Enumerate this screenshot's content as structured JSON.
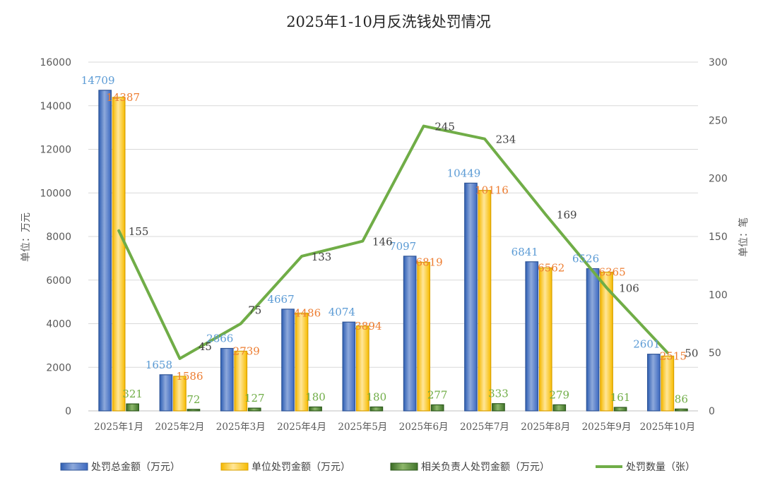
{
  "chart_data": {
    "type": "bar",
    "title": "2025年1-10月反洗钱处罚情况",
    "ylabel": "单位：万元",
    "y2label": "单位：笔",
    "ylim": [
      0,
      16000
    ],
    "y2lim": [
      0,
      300
    ],
    "yticks": [
      "0",
      "2000",
      "4000",
      "6000",
      "8000",
      "10000",
      "12000",
      "14000",
      "16000"
    ],
    "y2ticks": [
      "0",
      "50",
      "100",
      "150",
      "200",
      "250",
      "300"
    ],
    "categories": [
      "2025年1月",
      "2025年2月",
      "2025年3月",
      "2025年4月",
      "2025年5月",
      "2025年6月",
      "2025年7月",
      "2025年8月",
      "2025年9月",
      "2025年10月"
    ],
    "series": [
      {
        "name": "处罚总金额（万元）",
        "type": "bar",
        "axis": "left",
        "color": "#4472C4",
        "label_color": "#5B9BD5",
        "values": [
          14709,
          1658,
          2866,
          4667,
          4074,
          7097,
          10449,
          6841,
          6526,
          2601
        ],
        "labels": [
          "14709",
          "1658",
          "2866",
          "4667",
          "4074",
          "7097",
          "10449",
          "6841",
          "6526",
          "2601"
        ]
      },
      {
        "name": "单位处罚金额（万元）",
        "type": "bar",
        "axis": "left",
        "color": "#FFC000",
        "label_color": "#ED7D31",
        "values": [
          14387,
          1586,
          2739,
          4486,
          3894,
          6819,
          10116,
          6562,
          6365,
          2515
        ],
        "labels": [
          "14387",
          "1586",
          "2739",
          "4486",
          "3894",
          "6819",
          "10116",
          "6562",
          "6365",
          "2515"
        ]
      },
      {
        "name": "相关负责人处罚金额（万元）",
        "type": "bar",
        "axis": "left",
        "color": "#548235",
        "label_color": "#70AD47",
        "values": [
          321,
          72,
          127,
          180,
          180,
          277,
          333,
          279,
          161,
          86
        ],
        "labels": [
          "321",
          "72",
          "127",
          "180",
          "180",
          "277",
          "333",
          "279",
          "161",
          "86"
        ]
      },
      {
        "name": "处罚数量（张）",
        "type": "line",
        "axis": "right",
        "color": "#70AD47",
        "label_color": "#404040",
        "values": [
          155,
          45,
          75,
          133,
          146,
          245,
          234,
          169,
          106,
          50
        ],
        "labels": [
          "155",
          "45",
          "75",
          "133",
          "146",
          "245",
          "234",
          "169",
          "106",
          "50"
        ]
      }
    ],
    "grid": true,
    "legend": "bottom"
  }
}
